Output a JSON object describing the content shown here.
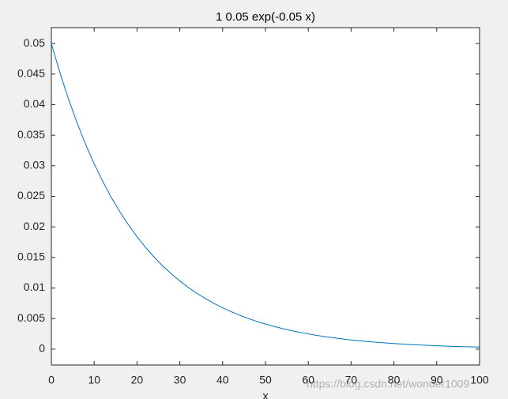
{
  "chart_data": {
    "type": "line",
    "title": "1 0.05 exp(-0.05 x)",
    "x_label": "x",
    "x": [
      0,
      2,
      4,
      6,
      8,
      10,
      12,
      14,
      16,
      18,
      20,
      22,
      24,
      26,
      28,
      30,
      32,
      34,
      36,
      38,
      40,
      42,
      44,
      46,
      48,
      50,
      52,
      54,
      56,
      58,
      60,
      62,
      64,
      66,
      68,
      70,
      72,
      74,
      76,
      78,
      80,
      82,
      84,
      86,
      88,
      90,
      92,
      94,
      96,
      98,
      100
    ],
    "series": [
      {
        "color": "#0072bd",
        "values": [
          0.05,
          0.045242,
          0.040937,
          0.037041,
          0.033516,
          0.030327,
          0.027441,
          0.024829,
          0.022466,
          0.020328,
          0.018394,
          0.016644,
          0.01506,
          0.013627,
          0.01233,
          0.011157,
          0.010095,
          0.009134,
          0.008265,
          0.007478,
          0.006767,
          0.006123,
          0.00554,
          0.005013,
          0.004536,
          0.004104,
          0.003714,
          0.00336,
          0.003041,
          0.002751,
          0.002489,
          0.002252,
          0.002038,
          0.001844,
          0.001669,
          0.00151,
          0.001366,
          0.001236,
          0.001119,
          0.001012,
          0.000916,
          0.000829,
          0.00075,
          0.000678,
          0.000614,
          0.000555,
          0.000503,
          0.000455,
          0.000411,
          0.000372,
          0.000337
        ]
      }
    ],
    "xlim": [
      0,
      100
    ],
    "xticks": [
      0,
      10,
      20,
      30,
      40,
      50,
      60,
      70,
      80,
      90,
      100
    ],
    "ylim": [
      -0.0026,
      0.0526
    ],
    "yticks": [
      0,
      0.005,
      0.01,
      0.015,
      0.02,
      0.025,
      0.03,
      0.035,
      0.04,
      0.045,
      0.05
    ],
    "watermark": "https://blog.csdn.net/wonder1009"
  }
}
